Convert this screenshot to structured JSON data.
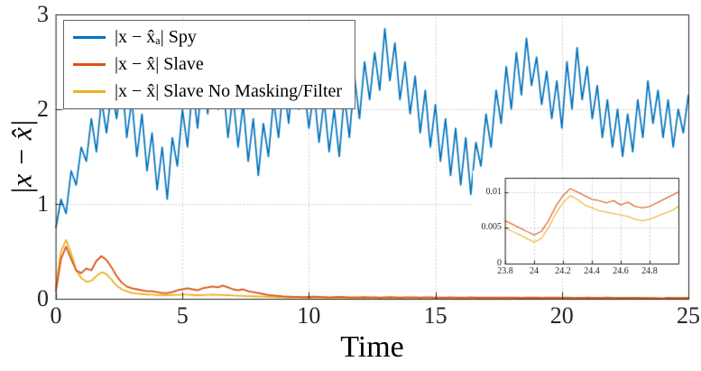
{
  "chart_data": {
    "type": "line",
    "title": "",
    "xlabel": "Time",
    "ylabel": "|x − x̂|",
    "xlim": [
      0,
      25
    ],
    "ylim": [
      0,
      3
    ],
    "xticks": [
      0,
      5,
      10,
      15,
      20,
      25
    ],
    "xtick_labels": [
      "0",
      "5",
      "10",
      "15",
      "20",
      "25"
    ],
    "yticks": [
      0,
      1,
      2,
      3
    ],
    "ytick_labels": [
      "0",
      "1",
      "2",
      "3"
    ],
    "grid": true,
    "legend_position": "top-left",
    "x0": 0,
    "dx": 0.2,
    "series": [
      {
        "name": "|x − x̂ₐ| Spy",
        "color": "#0072BD",
        "values": [
          0.75,
          1.05,
          0.9,
          1.35,
          1.2,
          1.6,
          1.45,
          1.9,
          1.55,
          2.1,
          1.75,
          2.2,
          1.9,
          2.35,
          1.7,
          2.1,
          1.5,
          1.95,
          1.35,
          1.75,
          1.15,
          1.6,
          1.05,
          1.7,
          1.4,
          2.0,
          1.6,
          2.25,
          1.8,
          2.4,
          1.95,
          2.5,
          2.0,
          2.3,
          1.7,
          2.15,
          1.6,
          2.05,
          1.45,
          1.9,
          1.3,
          1.85,
          1.5,
          2.1,
          1.7,
          2.3,
          1.85,
          2.45,
          2.0,
          2.25,
          1.8,
          2.2,
          1.65,
          2.1,
          1.55,
          2.0,
          1.5,
          2.15,
          1.7,
          2.35,
          1.9,
          2.5,
          2.1,
          2.6,
          2.2,
          2.85,
          2.3,
          2.7,
          2.1,
          2.5,
          1.95,
          2.35,
          1.75,
          2.2,
          1.6,
          2.05,
          1.45,
          1.9,
          1.3,
          1.8,
          1.2,
          1.7,
          1.1,
          1.65,
          1.4,
          1.95,
          1.6,
          2.2,
          1.85,
          2.45,
          2.0,
          2.6,
          2.15,
          2.75,
          2.25,
          2.55,
          2.05,
          2.4,
          1.9,
          2.3,
          1.8,
          2.5,
          2.0,
          2.65,
          2.1,
          2.45,
          1.9,
          2.25,
          1.7,
          2.1,
          1.6,
          2.0,
          1.5,
          1.95,
          1.55,
          2.1,
          1.7,
          2.3,
          1.85,
          2.2,
          1.7,
          2.1,
          1.6,
          2.0,
          1.75,
          2.15
        ]
      },
      {
        "name": "|x − x̂| Slave",
        "color": "#D95319",
        "values": [
          0.08,
          0.42,
          0.55,
          0.42,
          0.3,
          0.27,
          0.32,
          0.3,
          0.4,
          0.45,
          0.41,
          0.33,
          0.24,
          0.17,
          0.13,
          0.11,
          0.1,
          0.09,
          0.08,
          0.08,
          0.07,
          0.06,
          0.06,
          0.07,
          0.09,
          0.1,
          0.11,
          0.1,
          0.09,
          0.11,
          0.12,
          0.13,
          0.12,
          0.14,
          0.12,
          0.1,
          0.09,
          0.1,
          0.08,
          0.07,
          0.06,
          0.05,
          0.04,
          0.035,
          0.03,
          0.025,
          0.022,
          0.02,
          0.02,
          0.018,
          0.02,
          0.022,
          0.02,
          0.018,
          0.016,
          0.018,
          0.02,
          0.018,
          0.016,
          0.015,
          0.016,
          0.018,
          0.016,
          0.015,
          0.014,
          0.016,
          0.018,
          0.016,
          0.014,
          0.015,
          0.016,
          0.015,
          0.014,
          0.015,
          0.016,
          0.014,
          0.013,
          0.014,
          0.015,
          0.014,
          0.013,
          0.014,
          0.015,
          0.013,
          0.012,
          0.013,
          0.014,
          0.013,
          0.012,
          0.013,
          0.014,
          0.012,
          0.011,
          0.012,
          0.013,
          0.012,
          0.011,
          0.012,
          0.013,
          0.012,
          0.011,
          0.012,
          0.011,
          0.01,
          0.011,
          0.012,
          0.011,
          0.01,
          0.011,
          0.012,
          0.011,
          0.01,
          0.009,
          0.01,
          0.011,
          0.01,
          0.009,
          0.008,
          0.007,
          0.006,
          0.004,
          0.0105,
          0.009,
          0.008,
          0.009,
          0.01
        ]
      },
      {
        "name": "|x − x̂| Slave No Masking/Filter",
        "color": "#EDB120",
        "values": [
          0.12,
          0.5,
          0.62,
          0.48,
          0.3,
          0.22,
          0.18,
          0.19,
          0.24,
          0.28,
          0.26,
          0.2,
          0.14,
          0.1,
          0.08,
          0.06,
          0.055,
          0.05,
          0.045,
          0.045,
          0.04,
          0.04,
          0.038,
          0.04,
          0.042,
          0.045,
          0.045,
          0.04,
          0.038,
          0.04,
          0.042,
          0.045,
          0.042,
          0.04,
          0.038,
          0.035,
          0.032,
          0.03,
          0.028,
          0.026,
          0.024,
          0.022,
          0.02,
          0.018,
          0.016,
          0.015,
          0.014,
          0.013,
          0.013,
          0.012,
          0.013,
          0.014,
          0.013,
          0.012,
          0.011,
          0.012,
          0.013,
          0.012,
          0.011,
          0.01,
          0.011,
          0.012,
          0.011,
          0.01,
          0.0095,
          0.0105,
          0.0115,
          0.0105,
          0.0095,
          0.01,
          0.0105,
          0.01,
          0.0095,
          0.01,
          0.0105,
          0.0095,
          0.009,
          0.0095,
          0.01,
          0.0095,
          0.009,
          0.0095,
          0.01,
          0.009,
          0.0085,
          0.009,
          0.0095,
          0.009,
          0.0085,
          0.009,
          0.0095,
          0.0085,
          0.008,
          0.0085,
          0.009,
          0.0085,
          0.008,
          0.0085,
          0.009,
          0.0085,
          0.008,
          0.0085,
          0.008,
          0.0075,
          0.008,
          0.0085,
          0.008,
          0.0075,
          0.008,
          0.0085,
          0.008,
          0.0075,
          0.007,
          0.0075,
          0.008,
          0.0075,
          0.007,
          0.006,
          0.0055,
          0.005,
          0.003,
          0.0095,
          0.0075,
          0.007,
          0.0065,
          0.008
        ]
      }
    ],
    "inset": {
      "xlim": [
        23.8,
        25
      ],
      "ylim": [
        0,
        0.012
      ],
      "xticks": [
        23.8,
        24,
        24.2,
        24.4,
        24.6,
        24.8
      ],
      "xtick_labels": [
        "23.8",
        "24",
        "24.2",
        "24.4",
        "24.6",
        "24.8"
      ],
      "yticks": [
        0,
        0.005,
        0.01
      ],
      "ytick_labels": [
        "0",
        "0.005",
        "0.01"
      ],
      "x0": 23.8,
      "dx": 0.05,
      "series": [
        {
          "name": "|x − x̂| Slave",
          "color": "#D95319",
          "values": [
            0.006,
            0.0055,
            0.005,
            0.0045,
            0.004,
            0.0045,
            0.006,
            0.008,
            0.0095,
            0.0105,
            0.01,
            0.0095,
            0.009,
            0.0088,
            0.0085,
            0.0088,
            0.0082,
            0.0086,
            0.008,
            0.0078,
            0.008,
            0.0085,
            0.009,
            0.0095,
            0.01
          ]
        },
        {
          "name": "|x − x̂| Slave No Masking/Filter",
          "color": "#EDB120",
          "values": [
            0.005,
            0.0045,
            0.004,
            0.0035,
            0.003,
            0.0035,
            0.005,
            0.007,
            0.0085,
            0.0095,
            0.009,
            0.0082,
            0.0078,
            0.0074,
            0.0072,
            0.007,
            0.0068,
            0.0066,
            0.0062,
            0.006,
            0.0062,
            0.0066,
            0.007,
            0.0074,
            0.008
          ]
        }
      ]
    }
  }
}
